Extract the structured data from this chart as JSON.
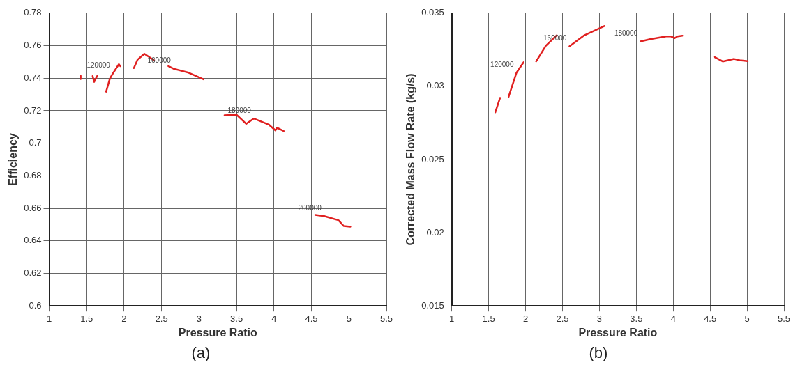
{
  "chart_data": [
    {
      "type": "line",
      "xlabel": "Pressure Ratio",
      "ylabel": "Efficiency",
      "xlim": [
        1,
        5.5
      ],
      "xticks": [
        1,
        1.5,
        2,
        2.5,
        3,
        3.5,
        4,
        4.5,
        5,
        5.5
      ],
      "ylim": [
        0.6,
        0.78
      ],
      "yticks": [
        0.6,
        0.62,
        0.64,
        0.66,
        0.68,
        0.7,
        0.72,
        0.74,
        0.76,
        0.78
      ],
      "grid": true,
      "legend": false,
      "marker": "none",
      "line_style": "solid",
      "series": [
        {
          "color": "#e02020",
          "x": [
            1.42,
            1.42
          ],
          "values": [
            0.7415,
            0.7395
          ]
        },
        {
          "color": "#e02020",
          "x": [
            1.58,
            1.6,
            1.64
          ],
          "values": [
            0.7413,
            0.7377,
            0.7413
          ]
        },
        {
          "color": "#e02020",
          "x": [
            1.76,
            1.81,
            1.85,
            1.93,
            1.95
          ],
          "values": [
            0.7317,
            0.7397,
            0.7429,
            0.7486,
            0.7474
          ]
        },
        {
          "color": "#e02020",
          "x": [
            2.13,
            2.18,
            2.27,
            2.4
          ],
          "values": [
            0.7462,
            0.7514,
            0.755,
            0.751
          ]
        },
        {
          "color": "#e02020",
          "x": [
            2.59,
            2.66,
            2.86,
            3.06
          ],
          "values": [
            0.7474,
            0.7458,
            0.7434,
            0.7393
          ]
        },
        {
          "color": "#e02020",
          "x": [
            3.34,
            3.5,
            3.63,
            3.73,
            3.93,
            4.02,
            4.04,
            4.13
          ],
          "values": [
            0.7172,
            0.7176,
            0.7119,
            0.7152,
            0.7115,
            0.7079,
            0.7095,
            0.7075
          ]
        },
        {
          "color": "#e02020",
          "x": [
            4.55,
            4.67,
            4.86,
            4.93,
            5.02
          ],
          "values": [
            0.656,
            0.6552,
            0.6527,
            0.6491,
            0.6487
          ]
        }
      ],
      "annotations": [
        {
          "text": "120000",
          "x": 1.85,
          "y": 0.7429
        },
        {
          "text": "160000",
          "x": 2.66,
          "y": 0.7458
        },
        {
          "text": "180000",
          "x": 3.73,
          "y": 0.7152
        },
        {
          "text": "200000",
          "x": 4.67,
          "y": 0.6552
        },
        "(a)"
      ]
    },
    {
      "type": "line",
      "xlabel": "Pressure Ratio",
      "ylabel": "Corrected Mass Flow Rate (kg/s)",
      "xlim": [
        1,
        5.5
      ],
      "xticks": [
        1,
        1.5,
        2,
        2.5,
        3,
        3.5,
        4,
        4.5,
        5,
        5.5
      ],
      "ylim": [
        0.015,
        0.035
      ],
      "yticks": [
        0.015,
        0.02,
        0.025,
        0.03,
        0.035
      ],
      "grid": true,
      "legend": false,
      "marker": "none",
      "line_style": "solid",
      "series": [
        {
          "color": "#e02020",
          "x": [
            1.59,
            1.654
          ],
          "values": [
            0.02823,
            0.02921
          ]
        },
        {
          "color": "#e02020",
          "x": [
            1.77,
            1.876,
            1.974
          ],
          "values": [
            0.02929,
            0.03092,
            0.03165
          ]
        },
        {
          "color": "#e02020",
          "x": [
            2.143,
            2.275,
            2.422
          ],
          "values": [
            0.0317,
            0.03277,
            0.03349
          ]
        },
        {
          "color": "#e02020",
          "x": [
            2.594,
            2.797,
            3.067
          ],
          "values": [
            0.03273,
            0.03349,
            0.03412
          ]
        },
        {
          "color": "#e02020",
          "x": [
            3.556,
            3.688,
            3.903,
            3.965,
            4.02,
            4.057,
            4.124
          ],
          "values": [
            0.03306,
            0.03322,
            0.03341,
            0.03341,
            0.03329,
            0.03341,
            0.03346
          ]
        },
        {
          "color": "#e02020",
          "x": [
            4.555,
            4.671,
            4.825,
            4.9,
            5.009
          ],
          "values": [
            0.03201,
            0.0317,
            0.03187,
            0.03178,
            0.03172
          ]
        }
      ],
      "annotations": [
        {
          "text": "120000",
          "x": 1.876,
          "y": 0.03092
        },
        {
          "text": "160000",
          "x": 2.594,
          "y": 0.03273
        },
        {
          "text": "180000",
          "x": 3.556,
          "y": 0.03306
        },
        "(b)"
      ]
    }
  ]
}
